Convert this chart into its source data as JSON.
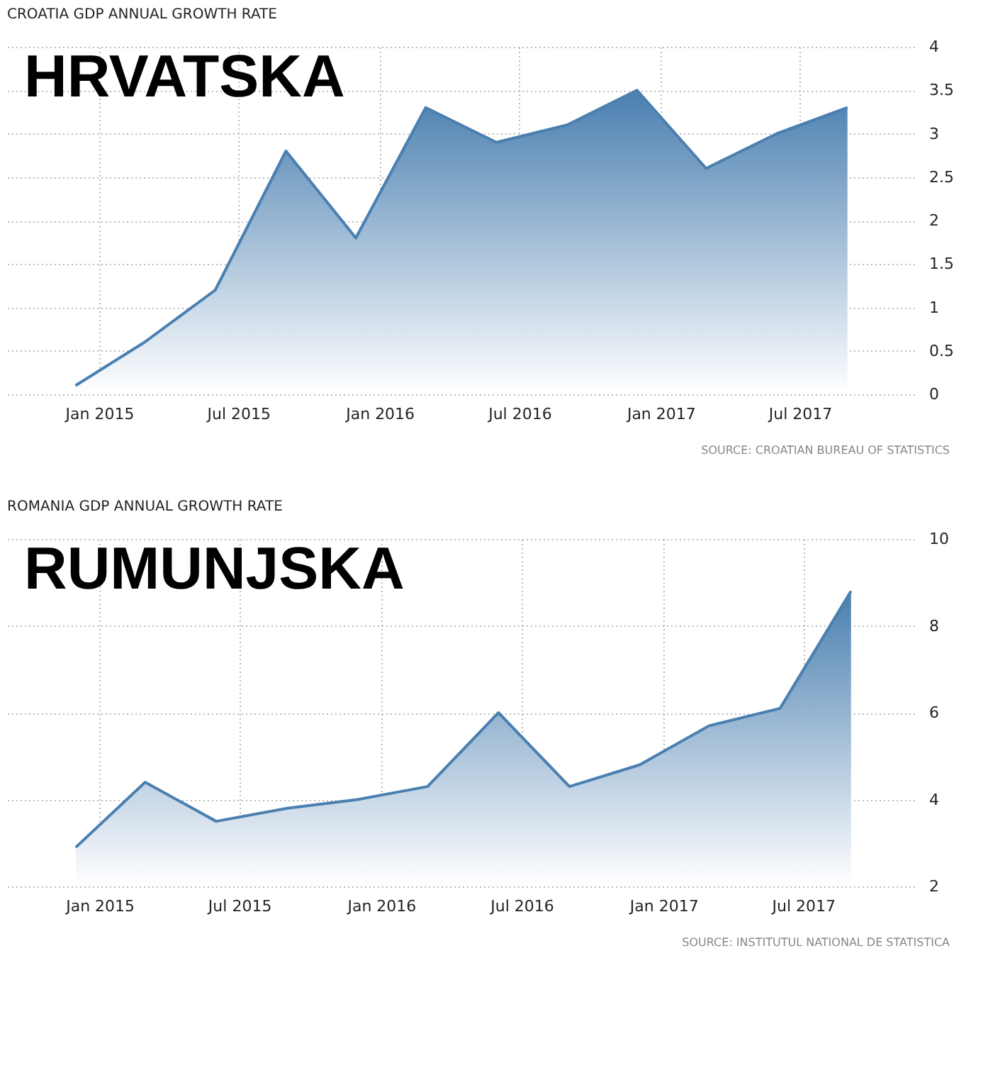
{
  "chart_data": [
    {
      "type": "area",
      "title": "CROATIA GDP ANNUAL GROWTH RATE",
      "color": "#4a7fb0",
      "x": [
        "2014-12-01",
        "2015-03-01",
        "2015-06-01",
        "2015-09-01",
        "2015-12-01",
        "2016-03-01",
        "2016-06-01",
        "2016-09-01",
        "2016-12-01",
        "2017-03-01",
        "2017-06-01",
        "2017-09-01"
      ],
      "values": [
        0.1,
        0.6,
        1.2,
        2.8,
        1.8,
        3.3,
        2.9,
        3.1,
        3.5,
        2.6,
        3.0,
        3.3
      ],
      "xlim": [
        "2014-09-03",
        "2017-11-27"
      ],
      "ylim": [
        0,
        4
      ],
      "yticks": [
        0,
        0.5,
        1,
        1.5,
        2,
        2.5,
        3,
        3.5,
        4
      ],
      "xticks": [
        {
          "value": "2015-01-01",
          "label": "Jan 2015"
        },
        {
          "value": "2015-07-01",
          "label": "Jul 2015"
        },
        {
          "value": "2016-01-01",
          "label": "Jan 2016"
        },
        {
          "value": "2016-07-01",
          "label": "Jul 2016"
        },
        {
          "value": "2017-01-01",
          "label": "Jan 2017"
        },
        {
          "value": "2017-07-01",
          "label": "Jul 2017"
        }
      ],
      "grid": true,
      "annotations": [
        "HRVATSKA",
        "SOURCE: CROATIAN BUREAU OF STATISTICS"
      ]
    },
    {
      "type": "area",
      "title": "ROMANIA GDP ANNUAL GROWTH RATE",
      "color": "#4a7fb0",
      "x": [
        "2014-12-01",
        "2015-03-01",
        "2015-06-01",
        "2015-09-01",
        "2015-12-01",
        "2016-03-01",
        "2016-06-01",
        "2016-09-01",
        "2016-12-01",
        "2017-03-01",
        "2017-06-01",
        "2017-09-01"
      ],
      "values": [
        2.9,
        4.4,
        3.5,
        3.8,
        4.0,
        4.3,
        6.0,
        4.3,
        4.8,
        5.7,
        6.1,
        8.8
      ],
      "xlim": [
        "2014-09-03",
        "2017-11-22"
      ],
      "ylim": [
        2,
        10
      ],
      "yticks": [
        2,
        4,
        6,
        8,
        10
      ],
      "xticks": [
        {
          "value": "2015-01-01",
          "label": "Jan 2015"
        },
        {
          "value": "2015-07-01",
          "label": "Jul 2015"
        },
        {
          "value": "2016-01-01",
          "label": "Jan 2016"
        },
        {
          "value": "2016-07-01",
          "label": "Jul 2016"
        },
        {
          "value": "2017-01-01",
          "label": "Jan 2017"
        },
        {
          "value": "2017-07-01",
          "label": "Jul 2017"
        }
      ],
      "grid": true,
      "annotations": [
        "RUMUNJSKA",
        "SOURCE: INSTITUTUL NATIONAL DE STATISTICA"
      ]
    }
  ]
}
